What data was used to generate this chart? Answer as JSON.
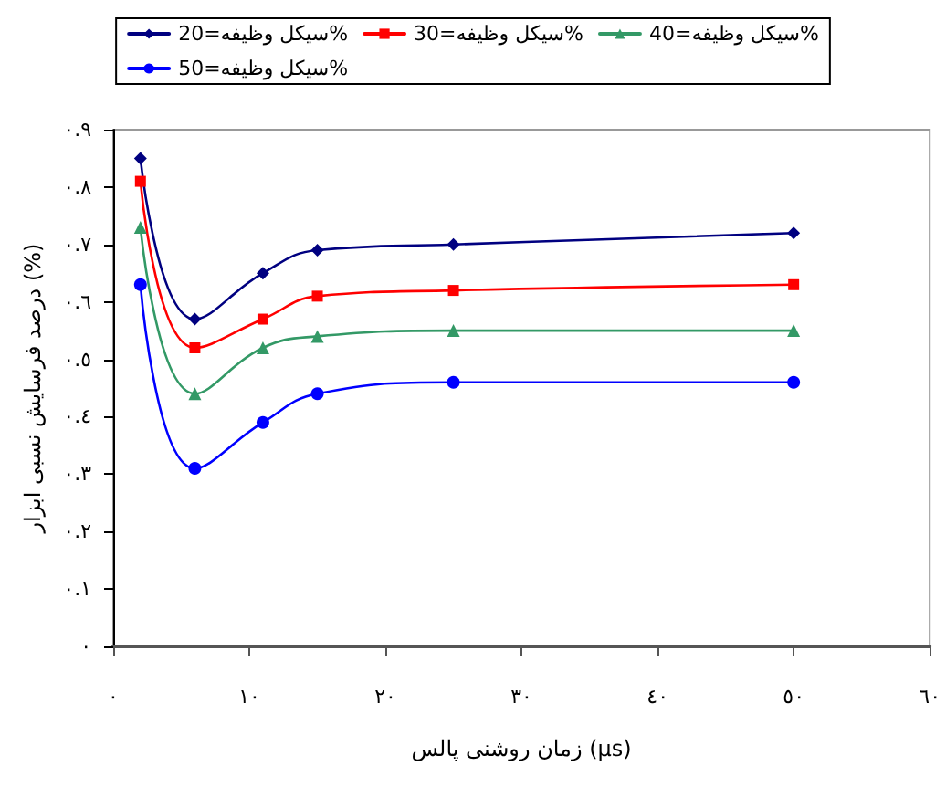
{
  "chart_data": {
    "type": "line",
    "xlabel": "زمان روشنی پالس (µs)",
    "ylabel": "درصد فرسایش نسبی ابزار (%)",
    "x": [
      2,
      6,
      11,
      15,
      25,
      50
    ],
    "series": [
      {
        "name": "سیکل وظیفه=20%",
        "color": "#000080",
        "marker": "diamond",
        "values": [
          0.85,
          0.57,
          0.65,
          0.69,
          0.7,
          0.72
        ]
      },
      {
        "name": "سیکل وظیفه=30%",
        "color": "#ff0000",
        "marker": "square",
        "values": [
          0.81,
          0.52,
          0.57,
          0.61,
          0.62,
          0.63
        ]
      },
      {
        "name": "سیکل وظیفه=40%",
        "color": "#339966",
        "marker": "triangle",
        "values": [
          0.73,
          0.44,
          0.52,
          0.54,
          0.55,
          0.55
        ]
      },
      {
        "name": "سیکل وظیفه=50%",
        "color": "#0000ff",
        "marker": "circle",
        "values": [
          0.63,
          0.31,
          0.39,
          0.44,
          0.46,
          0.46
        ]
      }
    ],
    "xlim": [
      0,
      60
    ],
    "xticks": [
      {
        "value": 0,
        "label": "٠"
      },
      {
        "value": 10,
        "label": "١٠"
      },
      {
        "value": 20,
        "label": "٢٠"
      },
      {
        "value": 30,
        "label": "٣٠"
      },
      {
        "value": 40,
        "label": "٤٠"
      },
      {
        "value": 50,
        "label": "٥٠"
      },
      {
        "value": 60,
        "label": "٦٠"
      }
    ],
    "ylim": [
      0,
      0.9
    ],
    "yticks": [
      {
        "value": 0,
        "label": "٠"
      },
      {
        "value": 0.1,
        "label": "٠.١"
      },
      {
        "value": 0.2,
        "label": "٠.٢"
      },
      {
        "value": 0.3,
        "label": "٠.٣"
      },
      {
        "value": 0.4,
        "label": "٠.٤"
      },
      {
        "value": 0.5,
        "label": "٠.٥"
      },
      {
        "value": 0.6,
        "label": "٠.٦"
      },
      {
        "value": 0.7,
        "label": "٠.٧"
      },
      {
        "value": 0.8,
        "label": "٠.٨"
      },
      {
        "value": 0.9,
        "label": "٠.٩"
      }
    ],
    "grid": false,
    "legend": "top",
    "line_style": "solid"
  }
}
